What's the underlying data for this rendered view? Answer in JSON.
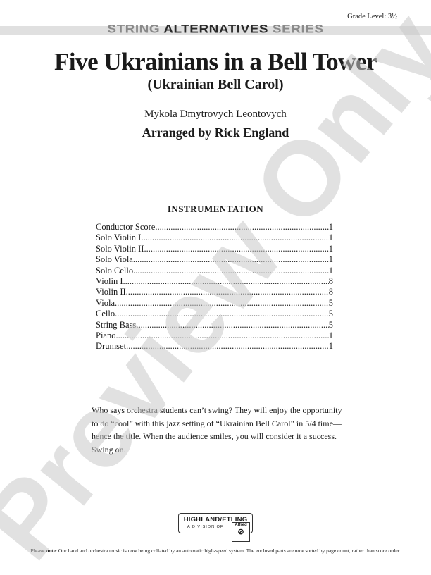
{
  "header": {
    "grade_level": "Grade Level: 3½",
    "series_part1": "STRING",
    "series_part2": "ALTERNATIVES",
    "series_part3": "SERIES"
  },
  "title": "Five Ukrainians in a Bell Tower",
  "subtitle": "(Ukrainian Bell Carol)",
  "composer": "Mykola Dmytrovych Leontovych",
  "arranger": "Arranged by Rick England",
  "instrumentation": {
    "heading": "INSTRUMENTATION",
    "items": [
      {
        "name": "Conductor Score",
        "count": "1"
      },
      {
        "name": "Solo Violin I",
        "count": "1"
      },
      {
        "name": "Solo Violin II",
        "count": "1"
      },
      {
        "name": "Solo Viola",
        "count": "1"
      },
      {
        "name": "Solo Cello",
        "count": "1"
      },
      {
        "name": "Violin I",
        "count": "8"
      },
      {
        "name": "Violin II",
        "count": "8"
      },
      {
        "name": "Viola",
        "count": "5"
      },
      {
        "name": "Cello",
        "count": "5"
      },
      {
        "name": "String Bass",
        "count": "5"
      },
      {
        "name": "Piano",
        "count": "1"
      },
      {
        "name": "Drumset",
        "count": "1"
      }
    ]
  },
  "description": "Who says orchestra students can’t swing? They will enjoy the opportunity to do “cool” with this jazz setting of “Ukrainian Bell Carol” in 5/4 time—hence the title. When the audience smiles, you will consider it a success. Swing on.",
  "logo": {
    "line1": "HIGHLAND/ETLING",
    "line2": "A DIVISION OF",
    "brand": "Alfred"
  },
  "footer": {
    "label": "Please note",
    "text": ": Our band and orchestra music is now being collated by an automatic high-speed system. The enclosed parts are now sorted by page count, rather than score order."
  },
  "watermark": "Preview Only"
}
